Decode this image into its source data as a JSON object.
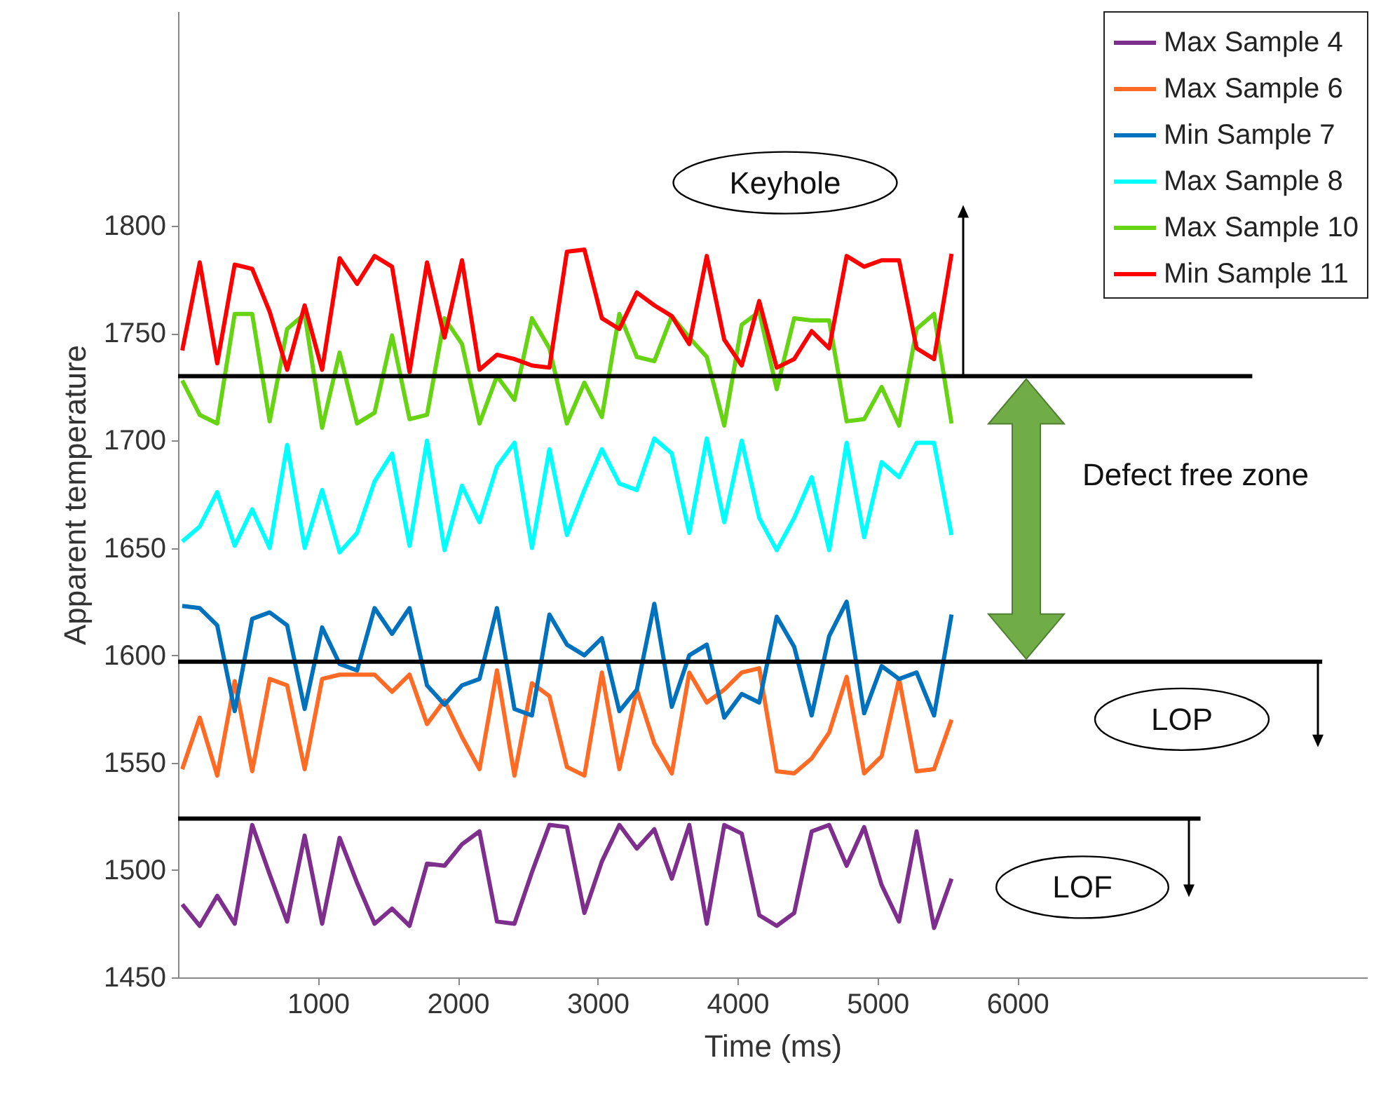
{
  "chart_data": {
    "type": "line",
    "xlabel": "Time (ms)",
    "ylabel": "Apparent temperature",
    "x": [
      30,
      155,
      280,
      405,
      530,
      655,
      780,
      905,
      1030,
      1155,
      1280,
      1405,
      1530,
      1655,
      1780,
      1905,
      2030,
      2155,
      2280,
      2405,
      2530,
      2655,
      2780,
      2905,
      3030,
      3155,
      3280,
      3405,
      3530,
      3655,
      3780,
      3905,
      4030,
      4155,
      4280,
      4405,
      4530,
      4655,
      4780,
      4905,
      5030,
      5155,
      5280,
      5405,
      5530
    ],
    "series": [
      {
        "name": "Max Sample 4",
        "color": "#7e2f8e",
        "values": [
          1484,
          1474,
          1488,
          1475,
          1521,
          1498,
          1476,
          1516,
          1475,
          1515,
          1494,
          1475,
          1482,
          1474,
          1503,
          1502,
          1512,
          1518,
          1476,
          1475,
          1499,
          1521,
          1520,
          1480,
          1504,
          1521,
          1510,
          1519,
          1496,
          1521,
          1475,
          1521,
          1517,
          1479,
          1474,
          1480,
          1518,
          1521,
          1502,
          1520,
          1493,
          1476,
          1518,
          1473,
          1496
        ]
      },
      {
        "name": "Max Sample 6",
        "color": "#ff6a25",
        "values": [
          1547,
          1571,
          1544,
          1588,
          1546,
          1589,
          1586,
          1547,
          1589,
          1591,
          1591,
          1591,
          1583,
          1591,
          1568,
          1579,
          1562,
          1547,
          1593,
          1544,
          1587,
          1581,
          1548,
          1544,
          1592,
          1547,
          1584,
          1559,
          1545,
          1592,
          1578,
          1584,
          1592,
          1594,
          1546,
          1545,
          1552,
          1564,
          1590,
          1545,
          1553,
          1589,
          1546,
          1547,
          1570
        ]
      },
      {
        "name": "Min Sample 7",
        "color": "#0072bd",
        "values": [
          1623,
          1622,
          1614,
          1574,
          1617,
          1620,
          1614,
          1575,
          1613,
          1596,
          1593,
          1622,
          1610,
          1622,
          1586,
          1577,
          1586,
          1589,
          1622,
          1575,
          1572,
          1619,
          1605,
          1600,
          1608,
          1574,
          1584,
          1624,
          1576,
          1600,
          1605,
          1571,
          1582,
          1578,
          1618,
          1604,
          1572,
          1609,
          1625,
          1573,
          1595,
          1589,
          1592,
          1572,
          1619
        ]
      },
      {
        "name": "Max Sample 8",
        "color": "#00ffff",
        "values": [
          1653,
          1660,
          1676,
          1651,
          1668,
          1650,
          1698,
          1650,
          1677,
          1648,
          1657,
          1681,
          1694,
          1651,
          1700,
          1649,
          1679,
          1662,
          1688,
          1699,
          1650,
          1696,
          1656,
          1677,
          1696,
          1680,
          1677,
          1701,
          1694,
          1657,
          1701,
          1662,
          1700,
          1664,
          1649,
          1664,
          1683,
          1649,
          1699,
          1655,
          1690,
          1683,
          1699,
          1699,
          1656
        ]
      },
      {
        "name": "Max Sample 10",
        "color": "#66d313",
        "values": [
          1728,
          1712,
          1708,
          1759,
          1759,
          1709,
          1752,
          1759,
          1706,
          1741,
          1708,
          1713,
          1749,
          1710,
          1712,
          1757,
          1745,
          1708,
          1730,
          1719,
          1757,
          1743,
          1708,
          1727,
          1711,
          1759,
          1739,
          1737,
          1758,
          1748,
          1739,
          1707,
          1754,
          1760,
          1724,
          1757,
          1756,
          1756,
          1709,
          1710,
          1725,
          1707,
          1752,
          1759,
          1708
        ]
      },
      {
        "name": "Min Sample 11",
        "color": "#ff0000",
        "values": [
          1742,
          1783,
          1736,
          1782,
          1780,
          1760,
          1733,
          1763,
          1733,
          1785,
          1773,
          1786,
          1781,
          1732,
          1783,
          1748,
          1784,
          1733,
          1740,
          1738,
          1735,
          1734,
          1788,
          1789,
          1757,
          1752,
          1769,
          1763,
          1758,
          1745,
          1786,
          1747,
          1735,
          1765,
          1734,
          1738,
          1751,
          1743,
          1786,
          1781,
          1784,
          1784,
          1743,
          1738,
          1787
        ]
      },
      {
        "color": "#000000",
        "x": [
          0,
          7680
        ],
        "values": [
          1730,
          1730
        ]
      },
      {
        "color": "#000000",
        "x": [
          0,
          8180
        ],
        "values": [
          1597,
          1597
        ]
      },
      {
        "color": "#000000",
        "x": [
          0,
          7310
        ],
        "values": [
          1524,
          1524
        ]
      }
    ],
    "annotations": [
      "Keyhole",
      "Defect free zone",
      "LOP",
      "LOF"
    ],
    "xlim": [
      0,
      8500
    ],
    "ylim": [
      1450,
      1900
    ],
    "xticks": [
      1000,
      2000,
      3000,
      4000,
      5000,
      6000
    ],
    "yticks": [
      1450,
      1500,
      1550,
      1600,
      1650,
      1700,
      1750,
      1800
    ],
    "legend": "top right"
  }
}
